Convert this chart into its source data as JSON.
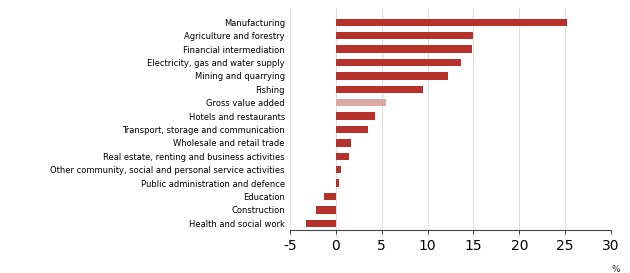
{
  "categories": [
    "Health and social work",
    "Construction",
    "Education",
    "Public administration and defence",
    "Other community, social and personal service activities",
    "Real estate, renting and business activities",
    "Wholesale and retail trade",
    "Transport, storage and communication",
    "Hotels and restaurants",
    "Gross value added",
    "Fishing",
    "Mining and quarrying",
    "Electricity, gas and water supply",
    "Financial intermediation",
    "Agriculture and forestry",
    "Manufacturing"
  ],
  "values": [
    -3.2,
    -2.2,
    -1.3,
    0.4,
    0.6,
    1.4,
    1.7,
    3.5,
    4.3,
    5.5,
    9.5,
    12.2,
    13.7,
    14.8,
    15.0,
    25.2
  ],
  "colors": [
    "#b5322a",
    "#b5322a",
    "#b5322a",
    "#b5322a",
    "#b5322a",
    "#b5322a",
    "#b5322a",
    "#b5322a",
    "#b5322a",
    "#dda9a4",
    "#b5322a",
    "#b5322a",
    "#b5322a",
    "#b5322a",
    "#b5322a",
    "#b5322a"
  ],
  "xlim": [
    -5,
    30
  ],
  "xticks": [
    -5,
    0,
    5,
    10,
    15,
    20,
    25,
    30
  ],
  "xlabel": "%",
  "background_color": "#ffffff",
  "grid_color": "#d0d0d0",
  "bar_height": 0.55,
  "label_fontsize": 6.0,
  "tick_fontsize": 6.5
}
